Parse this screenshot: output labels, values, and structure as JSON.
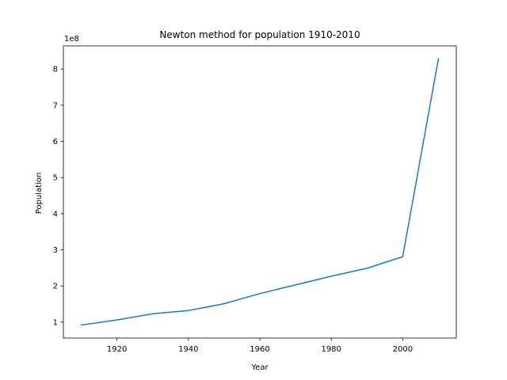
{
  "chart_data": {
    "type": "line",
    "title": "Newton method for population 1910-2010",
    "xlabel": "Year",
    "ylabel": "Population",
    "y_offset_label": "1e8",
    "xlim": [
      1905,
      2015
    ],
    "ylim": [
      0.56,
      8.64
    ],
    "x_ticks": [
      1920,
      1940,
      1960,
      1980,
      2000
    ],
    "x_tick_labels": [
      "1920",
      "1940",
      "1960",
      "1980",
      "2000"
    ],
    "y_ticks": [
      1,
      2,
      3,
      4,
      5,
      6,
      7,
      8
    ],
    "y_tick_labels": [
      "1",
      "2",
      "3",
      "4",
      "5",
      "6",
      "7",
      "8"
    ],
    "grid": false,
    "series": [
      {
        "name": "population",
        "color": "#1f77b4",
        "x": [
          1910,
          1920,
          1930,
          1940,
          1950,
          1960,
          1970,
          1980,
          1990,
          2000,
          2010
        ],
        "y": [
          0.92,
          1.06,
          1.23,
          1.32,
          1.51,
          1.79,
          2.03,
          2.27,
          2.49,
          2.81,
          8.29
        ]
      }
    ]
  }
}
